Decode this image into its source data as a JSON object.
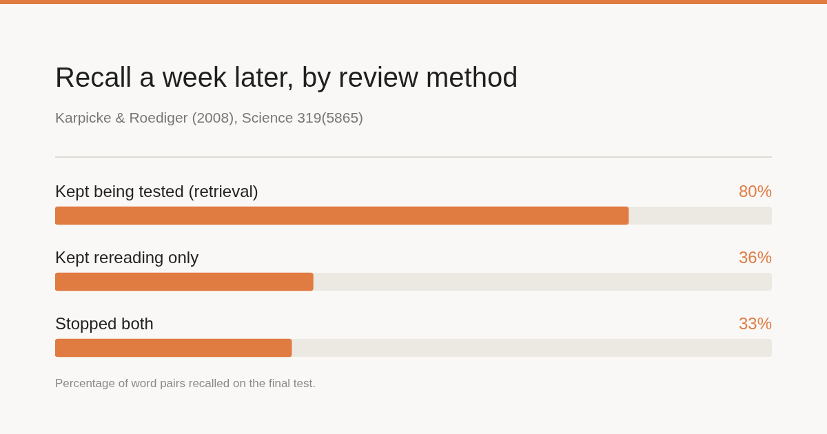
{
  "chart_data": {
    "type": "bar",
    "orientation": "horizontal",
    "title": "Recall a week later, by review method",
    "subtitle": "Karpicke & Roediger (2008), Science 319(5865)",
    "categories": [
      "Kept being tested (retrieval)",
      "Kept rereading only",
      "Stopped both"
    ],
    "values": [
      80,
      36,
      33
    ],
    "color": "#e07b42",
    "value_labels": [
      "80%",
      "36%",
      "33%"
    ],
    "xlim": [
      0,
      100
    ],
    "annotations": [
      "Percentage of word pairs recalled on the final test."
    ]
  }
}
